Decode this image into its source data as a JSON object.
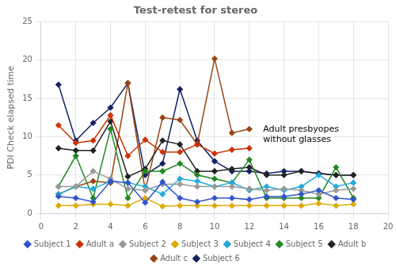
{
  "chart_data": {
    "type": "line",
    "title": "Test-retest for stereo",
    "ylabel": "PDI Check elapsed time",
    "x": [
      1,
      2,
      3,
      4,
      5,
      6,
      7,
      8,
      9,
      10,
      11,
      12,
      13,
      14,
      15,
      16,
      17,
      18
    ],
    "xlim": [
      0,
      20
    ],
    "xticks": [
      0,
      2,
      4,
      6,
      8,
      10,
      12,
      14,
      16,
      18,
      20
    ],
    "ylim": [
      0,
      25
    ],
    "yticks": [
      0,
      5,
      10,
      15,
      20,
      25
    ],
    "grid": true,
    "legend": "bottom",
    "marker": "diamond",
    "annotations": [
      {
        "text": "Adult presbyopes\nwithout glasses",
        "x": 12.8,
        "y": 11.5
      }
    ],
    "series": [
      {
        "name": "Subject 1",
        "color": "#3355cc",
        "values": [
          2.2,
          2.0,
          1.5,
          4.2,
          4.0,
          1.4,
          4.1,
          2.0,
          1.5,
          2.0,
          2.0,
          1.8,
          2.2,
          2.2,
          2.5,
          3.0,
          2.0,
          1.8
        ]
      },
      {
        "name": "Adult a",
        "color": "#cc3300",
        "values": [
          11.5,
          9.2,
          9.5,
          12.8,
          7.5,
          9.6,
          8.0,
          8.0,
          9.0,
          7.8,
          8.3,
          8.5,
          null,
          null,
          null,
          null,
          null,
          null
        ]
      },
      {
        "name": "Subject 2",
        "color": "#999999",
        "values": [
          3.5,
          3.5,
          5.5,
          4.5,
          3.2,
          3.0,
          3.8,
          3.8,
          3.5,
          3.5,
          3.5,
          3.2,
          3.0,
          3.2,
          3.0,
          2.5,
          3.0,
          3.2
        ]
      },
      {
        "name": "Subject 3",
        "color": "#ddaa00",
        "values": [
          1.0,
          1.0,
          1.2,
          1.2,
          1.0,
          2.0,
          0.9,
          1.0,
          1.0,
          1.0,
          1.0,
          1.0,
          1.0,
          1.0,
          1.0,
          1.3,
          1.0,
          1.2
        ]
      },
      {
        "name": "Subject 4",
        "color": "#22aadd",
        "values": [
          2.5,
          3.5,
          3.2,
          4.2,
          4.0,
          3.5,
          2.5,
          4.5,
          4.2,
          3.5,
          4.0,
          3.0,
          3.5,
          3.0,
          3.5,
          5.0,
          3.5,
          4.0
        ]
      },
      {
        "name": "Subject 5",
        "color": "#228822",
        "values": [
          3.5,
          7.5,
          2.0,
          11.0,
          2.0,
          5.5,
          5.5,
          6.5,
          5.0,
          4.5,
          4.0,
          7.0,
          2.0,
          2.0,
          2.0,
          2.0,
          6.0,
          2.0
        ]
      },
      {
        "name": "Adult b",
        "color": "#222222",
        "values": [
          8.5,
          8.2,
          8.2,
          12.0,
          4.8,
          5.8,
          9.5,
          9.0,
          5.5,
          5.5,
          5.8,
          6.0,
          5.0,
          5.0,
          5.5,
          5.2,
          5.0,
          5.0
        ]
      },
      {
        "name": "Adult c",
        "color": "#994411",
        "values": [
          2.5,
          3.5,
          4.2,
          4.0,
          17.0,
          3.0,
          12.5,
          12.2,
          9.0,
          20.2,
          10.5,
          11.0,
          null,
          null,
          null,
          null,
          null,
          null
        ]
      },
      {
        "name": "Subject 6",
        "color": "#112266",
        "values": [
          16.8,
          9.5,
          11.8,
          13.8,
          17.0,
          5.0,
          6.5,
          16.2,
          9.5,
          6.8,
          5.5,
          5.5,
          5.2,
          5.5,
          5.5,
          5.2,
          5.0,
          5.0
        ]
      }
    ]
  }
}
